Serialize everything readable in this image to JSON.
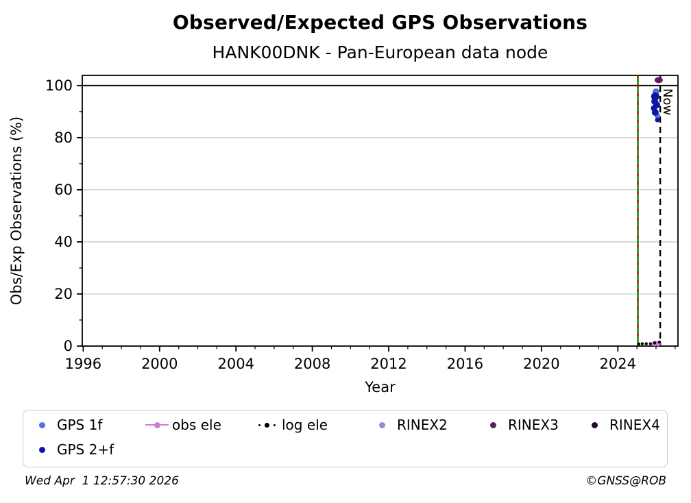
{
  "title": "Observed/Expected GPS Observations",
  "subtitle": "HANK00DNK - Pan-European data node",
  "footer": {
    "timestamp": "Wed Apr  1 12:57:30 2026",
    "credit": "©GNSS@ROB"
  },
  "legend": {
    "items": [
      {
        "label": "GPS 1f",
        "color": "#5a6ee0",
        "marker": "dot"
      },
      {
        "label": "obs ele",
        "color": "#c97fd2",
        "marker": "line-dot"
      },
      {
        "label": "log ele",
        "color": "#000000",
        "marker": "dotted-line"
      },
      {
        "label": "RINEX2",
        "color": "#8f8fd8",
        "marker": "dot"
      },
      {
        "label": "RINEX3",
        "color": "#5e2069",
        "marker": "dot"
      },
      {
        "label": "RINEX4",
        "color": "#250b2e",
        "marker": "dot"
      },
      {
        "label": "GPS 2+f",
        "color": "#0d17a0",
        "marker": "dot"
      }
    ]
  },
  "chart_data": {
    "type": "scatter",
    "title": "Observed/Expected GPS Observations",
    "subtitle": "HANK00DNK - Pan-European data node",
    "xlabel": "Year",
    "ylabel": "Obs/Exp Observations (%)",
    "xlim": [
      1995.95,
      2027.15
    ],
    "ylim": [
      0,
      103.9
    ],
    "xticks_major": [
      1996,
      2000,
      2004,
      2008,
      2012,
      2016,
      2020,
      2024
    ],
    "xticks_minor": [
      1997,
      1998,
      1999,
      2001,
      2002,
      2003,
      2005,
      2006,
      2007,
      2009,
      2010,
      2011,
      2013,
      2014,
      2015,
      2017,
      2018,
      2019,
      2021,
      2022,
      2023,
      2025,
      2026,
      2027
    ],
    "yticks_major": [
      0,
      20,
      40,
      60,
      80,
      100
    ],
    "yticks_minor": [
      10,
      30,
      50,
      70,
      90
    ],
    "grid_values": [
      20,
      40,
      60,
      80
    ],
    "grid_color": "#c9c9c9",
    "hline": {
      "value": 100,
      "color": "#000000"
    },
    "vlines": [
      {
        "name": "install-line",
        "year": 2025.05,
        "style": "solid",
        "color": "#007d00",
        "overlay": {
          "style": "dotted",
          "color": "#d40000"
        }
      },
      {
        "name": "now-line",
        "year": 2026.22,
        "style": "dashed",
        "color": "#000000",
        "text": "Now"
      }
    ],
    "series": [
      {
        "name": "GPS 1f",
        "color": "#5a6ee0",
        "points": [
          {
            "year": 2026.0,
            "value": 97.6,
            "r": 5
          },
          {
            "year": 2026.07,
            "value": 88.4,
            "r": 4
          }
        ]
      },
      {
        "name": "GPS 2+f",
        "color": "#0d17a0",
        "points": [
          {
            "year": 2025.96,
            "value": 95.8,
            "r": 6
          },
          {
            "year": 2025.93,
            "value": 93.9,
            "r": 5
          },
          {
            "year": 2026.04,
            "value": 92.6,
            "r": 5
          },
          {
            "year": 2025.89,
            "value": 91.3,
            "r": 4.5
          },
          {
            "year": 2025.96,
            "value": 89.7,
            "r": 5
          },
          {
            "year": 2026.07,
            "value": 86.8,
            "r": 3.5
          }
        ]
      },
      {
        "name": "obs ele",
        "color": "#c97fd2",
        "line": true,
        "points": [
          {
            "year": 2025.93,
            "value": 1.0,
            "r": 4
          },
          {
            "year": 2026.11,
            "value": 1.0,
            "r": 4
          }
        ]
      },
      {
        "name": "log ele",
        "color": "#000000",
        "points": [
          {
            "year": 2025.1,
            "value": 0.8,
            "r": 2.2
          },
          {
            "year": 2025.28,
            "value": 0.9,
            "r": 2.2
          },
          {
            "year": 2025.49,
            "value": 0.9,
            "r": 2.2
          },
          {
            "year": 2025.71,
            "value": 0.9,
            "r": 2.2
          },
          {
            "year": 2025.93,
            "value": 1.2,
            "r": 2.2
          },
          {
            "year": 2026.18,
            "value": 1.5,
            "r": 2.2
          }
        ]
      },
      {
        "name": "RINEX2",
        "color": "#8f8fd8",
        "points": []
      },
      {
        "name": "RINEX3",
        "color": "#5e2069",
        "points": [
          {
            "year": 2026.14,
            "value": 102.1,
            "shape": "ellipse",
            "rx": 6,
            "ry": 4.5
          }
        ]
      },
      {
        "name": "RINEX4",
        "color": "#250b2e",
        "points": []
      }
    ]
  }
}
